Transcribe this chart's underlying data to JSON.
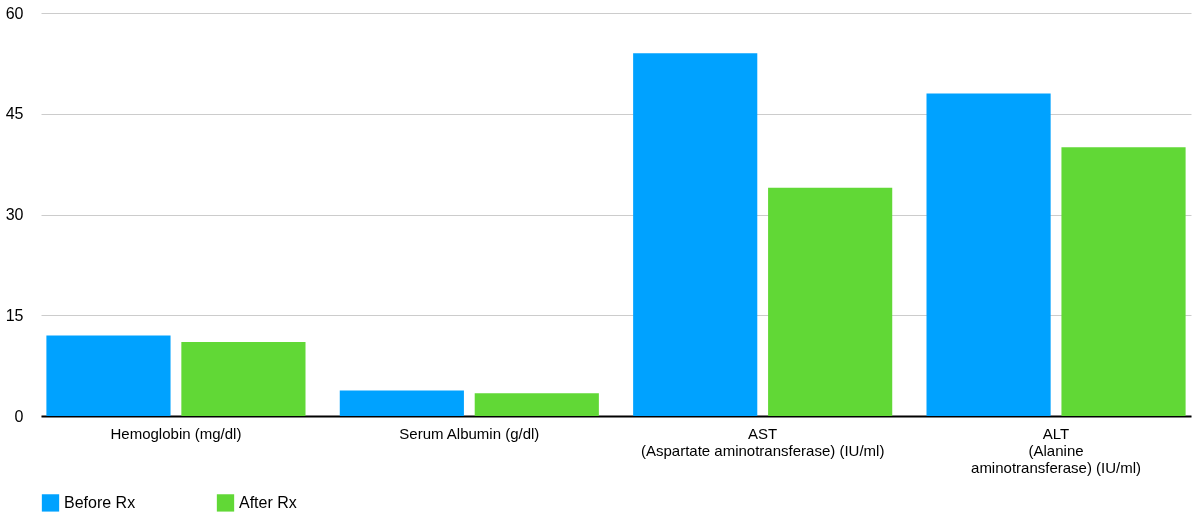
{
  "chart_data": {
    "type": "bar",
    "categories": [
      "Hemoglobin (mg/dl)",
      "Serum Albumin (g/dl)",
      "AST\n(Aspartate aminotransferase) (IU/ml)",
      "ALT\n(Alanine\naminotransferase) (IU/ml)"
    ],
    "series": [
      {
        "name": "Before Rx",
        "color": "#00a2ff",
        "values": [
          12,
          3.8,
          54,
          48
        ]
      },
      {
        "name": "After Rx",
        "color": "#61d836",
        "values": [
          11,
          3.4,
          34,
          40
        ]
      }
    ],
    "ylim": [
      0,
      60
    ],
    "yticks": [
      0,
      15,
      30,
      45,
      60
    ],
    "grid": "y",
    "legend": "bottom"
  }
}
